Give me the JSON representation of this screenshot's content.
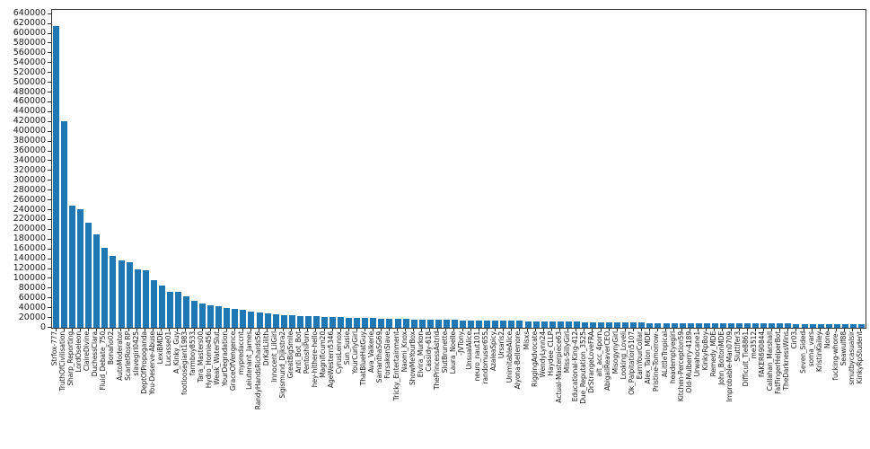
{
  "figure": {
    "background": "#ffffff",
    "spine_color": "#333333",
    "tick_label_color": "#1a1a1a"
  },
  "chart_data": {
    "type": "bar",
    "title": "",
    "xlabel": "",
    "ylabel": "",
    "legend": null,
    "grid": false,
    "bar_color": "#1f77b4",
    "ylim": [
      0,
      648600
    ],
    "yticks": [
      0,
      20000,
      40000,
      60000,
      80000,
      100000,
      120000,
      140000,
      160000,
      180000,
      200000,
      220000,
      240000,
      260000,
      280000,
      300000,
      320000,
      340000,
      360000,
      380000,
      400000,
      420000,
      440000,
      460000,
      480000,
      500000,
      520000,
      540000,
      560000,
      580000,
      600000,
      620000,
      640000
    ],
    "categories": [
      "Strfox-777",
      "TruthOfCivilisation",
      "Sharp_Reporting",
      "LordOseleon",
      "ClaireDivine",
      "DuchessClara",
      "Fluid_Debate_750",
      "Bonaño02",
      "AutoModerator",
      "ScarletRose RP",
      "slavegirl0425",
      "DeptOfPropoganda",
      "You-Deserve-Abuse",
      "LexiBMDE",
      "Lucasse01",
      "A_Kinky_Guy",
      "footloosegiant1983",
      "farmboy8533",
      "Tara_Masters00",
      "Hydro_Homie456",
      "Weak_WaterSlut",
      "YourDegradation",
      "GraceOfVengence",
      "mypredaccnt",
      "Leiutenant_James",
      "RandyHandsRichards56",
      "DrKatLilith",
      "Innocent_LilGirl",
      "Sigismund_Dijkstra2",
      "GreatBigSmile",
      "Anti_Bot_Bot",
      "PentoshiPorn",
      "hey-hithere-hello",
      "Magnificum20",
      "AgeWestern5346",
      "CyrusLennox",
      "Sun_Susie",
      "YourCurlyGirl",
      "ThatBlueHatGuy",
      "Ava_Valkerie",
      "SamanthaSG69",
      "ForsakenSlave",
      "Tricky_Entertainment",
      "Naomi_Knox",
      "ShowMeYourBox",
      "Elvira_Murkon",
      "Cassidy-618",
      "ThePrincessAstrid",
      "SlutBrunette",
      "Laura_Noelle",
      "-JVTony",
      "UnsualAlice",
      "neuro_naut101",
      "randomuser655",
      "AzaleaSpicy",
      "Ursaris2",
      "UnimitableAlice",
      "Alyona-Bellemore",
      "Misxs",
      "RiggingAdvocate",
      "WendyLynn24",
      "Haydee_CLLP",
      "Actual-Masterpiece63",
      "Miss-SillyGirl",
      "Educational-King-412",
      "Due_Reputation_3525",
      "DrStrangeLoveFRA",
      "alt_acc_4porn",
      "AbigailReaverCEO",
      "MisogynyGirl",
      "Looking_Loveli",
      "Ok_Palpitation5107",
      "EarnYourCollar",
      "Alex_Talon_MDE",
      "Pristine-Tomorrow-",
      "ALittleTropical",
      "heademptyegirl",
      "Kitchen-Perception59",
      "Old-Mulberry-4189",
      "Urwahocane1",
      "KinkyRpBoy",
      "Remedy_MDE",
      "John_BoltonMDE",
      "Improbable-Man0709",
      "Sluttifer3",
      "Difficult_Tie8861",
      "me3512",
      "FAKER690844",
      "Callahan_Marshall",
      "FatFingerHelperBot",
      "TheDarknessWins",
      "Cir03",
      "Seven_Sided",
      "soma_vars",
      "KristinKailey",
      "None",
      "fucking-whore-",
      "Seawulf88",
      "smutbycasualsir",
      "KinkyRpStudent"
    ],
    "values": [
      616000,
      422000,
      250000,
      241000,
      215000,
      190000,
      164000,
      147000,
      138000,
      134000,
      120000,
      117000,
      98000,
      86000,
      74000,
      73000,
      65000,
      55000,
      49000,
      45000,
      44000,
      40000,
      38500,
      37000,
      33000,
      31000,
      29000,
      27500,
      26000,
      25000,
      24500,
      24000,
      23000,
      22500,
      22000,
      21500,
      21000,
      20500,
      20000,
      19500,
      19000,
      18500,
      18000,
      17500,
      17000,
      16800,
      16500,
      16200,
      16000,
      15800,
      15500,
      15200,
      15000,
      14800,
      14500,
      14200,
      14000,
      13800,
      13500,
      13200,
      13000,
      12800,
      12500,
      12200,
      12000,
      11800,
      11500,
      11200,
      11000,
      10800,
      10600,
      10400,
      10200,
      10000,
      9900,
      9800,
      9700,
      9600,
      9500,
      9400,
      9300,
      9200,
      9100,
      9000,
      8900,
      8800,
      8700,
      8600,
      8500,
      8400,
      8300,
      8200,
      8100,
      8000,
      7900,
      7800,
      7700,
      7600,
      7500,
      7400
    ]
  }
}
